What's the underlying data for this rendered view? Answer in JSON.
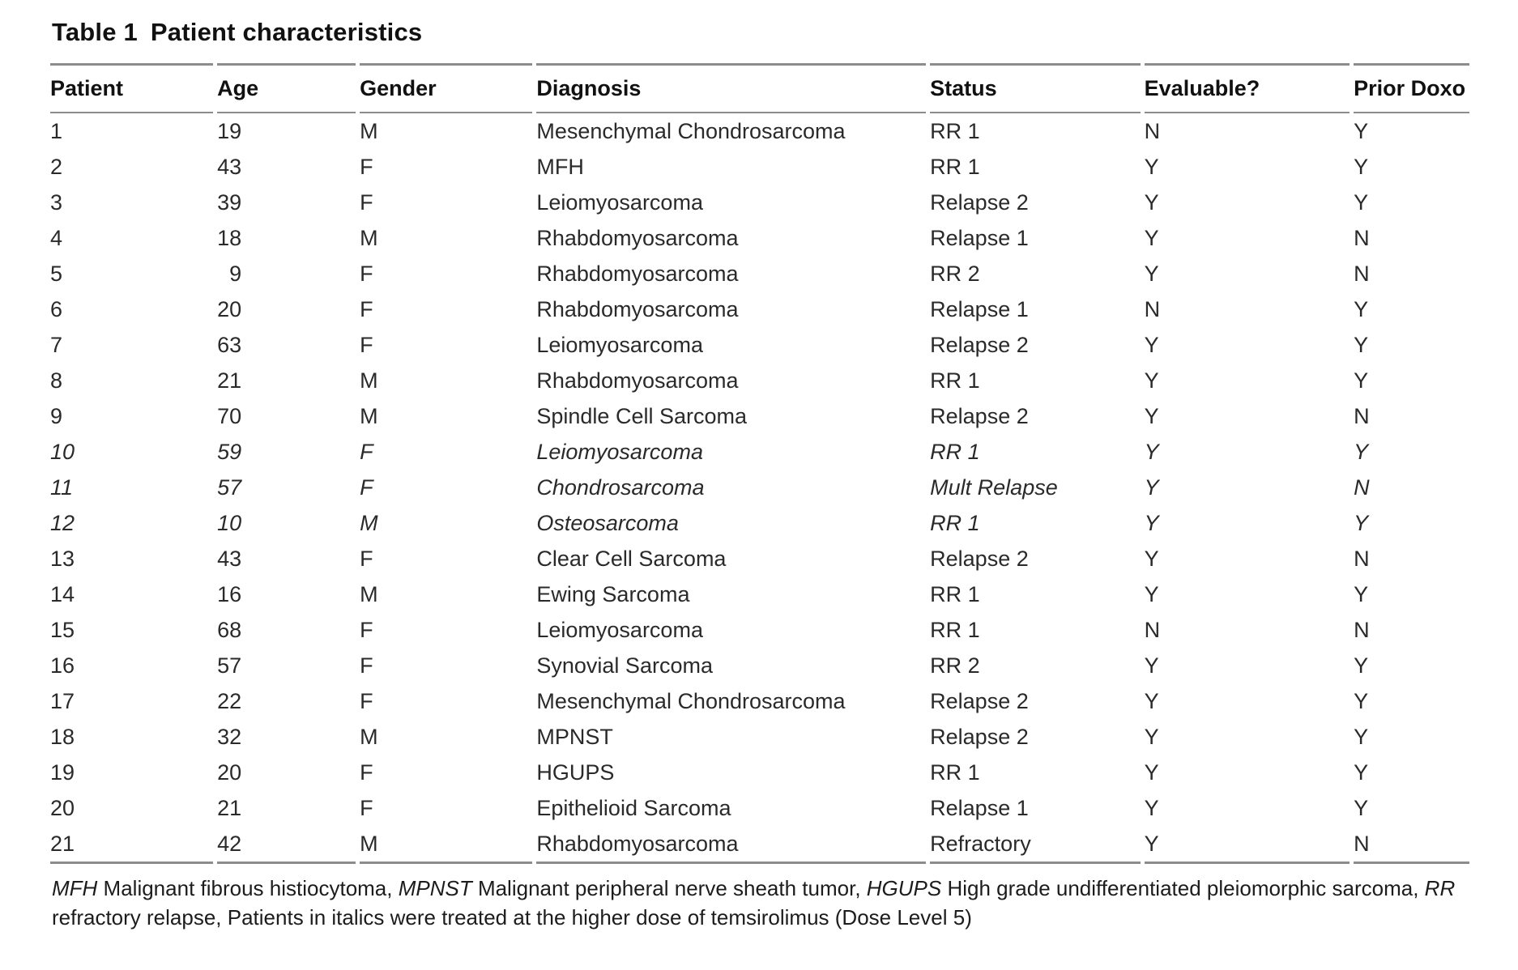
{
  "title": {
    "label": "Table 1",
    "caption": "Patient characteristics"
  },
  "table": {
    "columns": [
      "Patient",
      "Age",
      "Gender",
      "Diagnosis",
      "Status",
      "Evaluable?",
      "Prior Doxo"
    ],
    "fields": [
      "patient",
      "age",
      "gender",
      "diagnosis",
      "status",
      "evaluable",
      "prior_doxo"
    ],
    "rows": [
      {
        "patient": "1",
        "age": "19",
        "gender": "M",
        "diagnosis": "Mesenchymal Chondrosarcoma",
        "status": "RR 1",
        "evaluable": "N",
        "prior_doxo": "Y",
        "italic": false
      },
      {
        "patient": "2",
        "age": "43",
        "gender": "F",
        "diagnosis": "MFH",
        "status": "RR 1",
        "evaluable": "Y",
        "prior_doxo": "Y",
        "italic": false
      },
      {
        "patient": "3",
        "age": "39",
        "gender": "F",
        "diagnosis": "Leiomyosarcoma",
        "status": "Relapse 2",
        "evaluable": "Y",
        "prior_doxo": "Y",
        "italic": false
      },
      {
        "patient": "4",
        "age": "18",
        "gender": "M",
        "diagnosis": "Rhabdomyosarcoma",
        "status": "Relapse 1",
        "evaluable": "Y",
        "prior_doxo": "N",
        "italic": false
      },
      {
        "patient": "5",
        "age": "9",
        "gender": "F",
        "diagnosis": "Rhabdomyosarcoma",
        "status": "RR 2",
        "evaluable": "Y",
        "prior_doxo": "N",
        "italic": false
      },
      {
        "patient": "6",
        "age": "20",
        "gender": "F",
        "diagnosis": "Rhabdomyosarcoma",
        "status": "Relapse 1",
        "evaluable": "N",
        "prior_doxo": "Y",
        "italic": false
      },
      {
        "patient": "7",
        "age": "63",
        "gender": "F",
        "diagnosis": "Leiomyosarcoma",
        "status": "Relapse 2",
        "evaluable": "Y",
        "prior_doxo": "Y",
        "italic": false
      },
      {
        "patient": "8",
        "age": "21",
        "gender": "M",
        "diagnosis": "Rhabdomyosarcoma",
        "status": "RR 1",
        "evaluable": "Y",
        "prior_doxo": "Y",
        "italic": false
      },
      {
        "patient": "9",
        "age": "70",
        "gender": "M",
        "diagnosis": "Spindle Cell Sarcoma",
        "status": "Relapse 2",
        "evaluable": "Y",
        "prior_doxo": "N",
        "italic": false
      },
      {
        "patient": "10",
        "age": "59",
        "gender": "F",
        "diagnosis": "Leiomyosarcoma",
        "status": "RR 1",
        "evaluable": "Y",
        "prior_doxo": "Y",
        "italic": true
      },
      {
        "patient": "11",
        "age": "57",
        "gender": "F",
        "diagnosis": "Chondrosarcoma",
        "status": "Mult Relapse",
        "evaluable": "Y",
        "prior_doxo": "N",
        "italic": true
      },
      {
        "patient": "12",
        "age": "10",
        "gender": "M",
        "diagnosis": "Osteosarcoma",
        "status": "RR 1",
        "evaluable": "Y",
        "prior_doxo": "Y",
        "italic": true
      },
      {
        "patient": "13",
        "age": "43",
        "gender": "F",
        "diagnosis": "Clear Cell Sarcoma",
        "status": "Relapse 2",
        "evaluable": "Y",
        "prior_doxo": "N",
        "italic": false
      },
      {
        "patient": "14",
        "age": "16",
        "gender": "M",
        "diagnosis": "Ewing Sarcoma",
        "status": "RR 1",
        "evaluable": "Y",
        "prior_doxo": "Y",
        "italic": false
      },
      {
        "patient": "15",
        "age": "68",
        "gender": "F",
        "diagnosis": "Leiomyosarcoma",
        "status": "RR 1",
        "evaluable": "N",
        "prior_doxo": "N",
        "italic": false
      },
      {
        "patient": "16",
        "age": "57",
        "gender": "F",
        "diagnosis": "Synovial Sarcoma",
        "status": "RR 2",
        "evaluable": "Y",
        "prior_doxo": "Y",
        "italic": false
      },
      {
        "patient": "17",
        "age": "22",
        "gender": "F",
        "diagnosis": "Mesenchymal Chondrosarcoma",
        "status": "Relapse 2",
        "evaluable": "Y",
        "prior_doxo": "Y",
        "italic": false
      },
      {
        "patient": "18",
        "age": "32",
        "gender": "M",
        "diagnosis": "MPNST",
        "status": "Relapse 2",
        "evaluable": "Y",
        "prior_doxo": "Y",
        "italic": false
      },
      {
        "patient": "19",
        "age": "20",
        "gender": "F",
        "diagnosis": "HGUPS",
        "status": "RR 1",
        "evaluable": "Y",
        "prior_doxo": "Y",
        "italic": false
      },
      {
        "patient": "20",
        "age": "21",
        "gender": "F",
        "diagnosis": "Epithelioid Sarcoma",
        "status": "Relapse 1",
        "evaluable": "Y",
        "prior_doxo": "Y",
        "italic": false
      },
      {
        "patient": "21",
        "age": "42",
        "gender": "M",
        "diagnosis": "Rhabdomyosarcoma",
        "status": "Refractory",
        "evaluable": "Y",
        "prior_doxo": "N",
        "italic": false
      }
    ]
  },
  "footnote": {
    "segments": [
      {
        "text": "MFH",
        "italic": true
      },
      {
        "text": " Malignant fibrous histiocytoma, ",
        "italic": false
      },
      {
        "text": "MPNST",
        "italic": true
      },
      {
        "text": " Malignant peripheral nerve sheath tumor, ",
        "italic": false
      },
      {
        "text": "HGUPS",
        "italic": true
      },
      {
        "text": " High grade undifferentiated pleiomorphic sarcoma, ",
        "italic": false
      },
      {
        "text": "RR",
        "italic": true
      },
      {
        "text": " refractory relapse, Patients in italics were treated at the higher dose of temsirolimus (Dose Level 5)",
        "italic": false
      }
    ]
  },
  "colors": {
    "rule": "#8c8c8c",
    "text": "#1c1c1c",
    "background": "#ffffff"
  }
}
